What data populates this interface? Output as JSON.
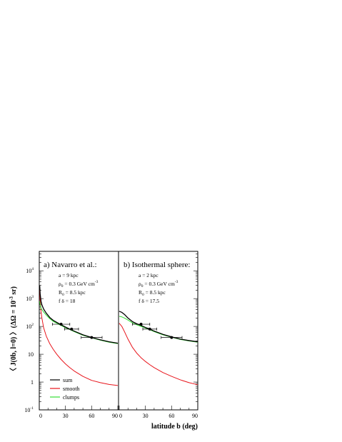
{
  "chart_data": {
    "type": "line",
    "xlabel": "latitude b (deg)",
    "ylabel": "〈 J(0b, l=0) 〉(ΔΩ = 10",
    "ylabel_exp": "-3",
    "ylabel_end": " sr)",
    "y_scale": "log",
    "ylim": [
      0.1,
      50000
    ],
    "y_ticks": [
      {
        "value": 10000,
        "base": "10",
        "exp": "4"
      },
      {
        "value": 1000,
        "base": "10",
        "exp": "3"
      },
      {
        "value": 100,
        "base": "10",
        "exp": "2"
      },
      {
        "value": 10,
        "base": "10",
        "exp": ""
      },
      {
        "value": 1,
        "base": "1",
        "exp": ""
      },
      {
        "value": 0.1,
        "base": "10",
        "exp": "-1"
      }
    ],
    "legend": [
      {
        "label": "sum",
        "color": "#000000"
      },
      {
        "label": "smooth",
        "color": "#e8141b"
      },
      {
        "label": "clumps",
        "color": "#33dd33"
      }
    ],
    "panels": [
      {
        "title": "a) Navarro et al.:",
        "xlim": [
          0,
          90
        ],
        "x_ticks": [
          "0",
          "30",
          "60",
          "90"
        ],
        "params": [
          {
            "main": "a = 9 kpc"
          },
          {
            "main": "ρ",
            "sub": "0",
            "rest": " = 0.3 GeV cm",
            "sup": "-3"
          },
          {
            "main": "R",
            "sub": "0",
            "rest": " = 8.5 kpc"
          },
          {
            "main": "f δ = 18"
          }
        ],
        "series": [
          {
            "name": "sum",
            "color": "#000000",
            "x": [
              0.5,
              1,
              2,
              3,
              5,
              8,
              12,
              16,
              20,
              25,
              30,
              35,
              40,
              50,
              60,
              70,
              80,
              90
            ],
            "y": [
              3000,
              1500,
              800,
              600,
              420,
              300,
              210,
              165,
              140,
              115,
              95,
              80,
              68,
              50,
              40,
              33,
              28,
              25
            ]
          },
          {
            "name": "smooth",
            "color": "#e8141b",
            "x": [
              0.5,
              1,
              2,
              3,
              5,
              8,
              12,
              16,
              20,
              25,
              30,
              35,
              40,
              50,
              60,
              70,
              80,
              90
            ],
            "y": [
              2000,
              900,
              350,
              200,
              90,
              45,
              24,
              15,
              10,
              6.5,
              4.5,
              3.3,
              2.5,
              1.6,
              1.15,
              0.95,
              0.82,
              0.75
            ]
          },
          {
            "name": "clumps",
            "color": "#33dd33",
            "x": [
              0.5,
              1,
              2,
              3,
              5,
              8,
              12,
              16,
              20,
              25,
              30,
              35,
              40,
              50,
              60,
              70,
              80,
              90
            ],
            "y": [
              800,
              600,
              450,
              400,
              330,
              255,
              190,
              152,
              130,
              108,
              90,
              77,
              65,
              48,
              39,
              32,
              27,
              24
            ]
          }
        ],
        "data_points": [
          {
            "x": 25,
            "y": 120,
            "xerr": 10
          },
          {
            "x": 37,
            "y": 80,
            "xerr": 8
          },
          {
            "x": 60,
            "y": 40,
            "xerr": 12
          }
        ]
      },
      {
        "title": "b) Isothermal sphere:",
        "xlim": [
          0,
          90
        ],
        "x_ticks": [
          "0",
          "30",
          "60",
          "90"
        ],
        "params": [
          {
            "main": "a = 2 kpc"
          },
          {
            "main": "ρ",
            "sub": "0",
            "rest": " = 0.3 GeV cm",
            "sup": "-3"
          },
          {
            "main": "R",
            "sub": "0",
            "rest": " = 8.5 kpc"
          },
          {
            "main": "f δ = 17.5"
          }
        ],
        "series": [
          {
            "name": "sum",
            "color": "#000000",
            "x": [
              0,
              3,
              6,
              10,
              15,
              20,
              25,
              30,
              35,
              40,
              50,
              60,
              70,
              80,
              90
            ],
            "y": [
              350,
              320,
              270,
              200,
              150,
              125,
              108,
              92,
              80,
              68,
              52,
              42,
              35,
              31,
              28
            ]
          },
          {
            "name": "smooth",
            "color": "#e8141b",
            "x": [
              0,
              3,
              6,
              10,
              15,
              20,
              25,
              30,
              35,
              40,
              50,
              60,
              70,
              80,
              90
            ],
            "y": [
              130,
              100,
              65,
              35,
              18,
              11,
              7.5,
              5.5,
              4.2,
              3.3,
              2.2,
              1.6,
              1.2,
              0.95,
              0.8
            ]
          },
          {
            "name": "clumps",
            "color": "#33dd33",
            "x": [
              0,
              3,
              6,
              10,
              15,
              20,
              25,
              30,
              35,
              40,
              50,
              60,
              70,
              80,
              90
            ],
            "y": [
              230,
              220,
              200,
              170,
              135,
              115,
              100,
              88,
              76,
              65,
              50,
              41,
              34,
              30,
              27
            ]
          }
        ],
        "data_points": [
          {
            "x": 25,
            "y": 120,
            "xerr": 10
          },
          {
            "x": 35,
            "y": 80,
            "xerr": 8
          },
          {
            "x": 60,
            "y": 40,
            "xerr": 12
          }
        ]
      }
    ]
  }
}
